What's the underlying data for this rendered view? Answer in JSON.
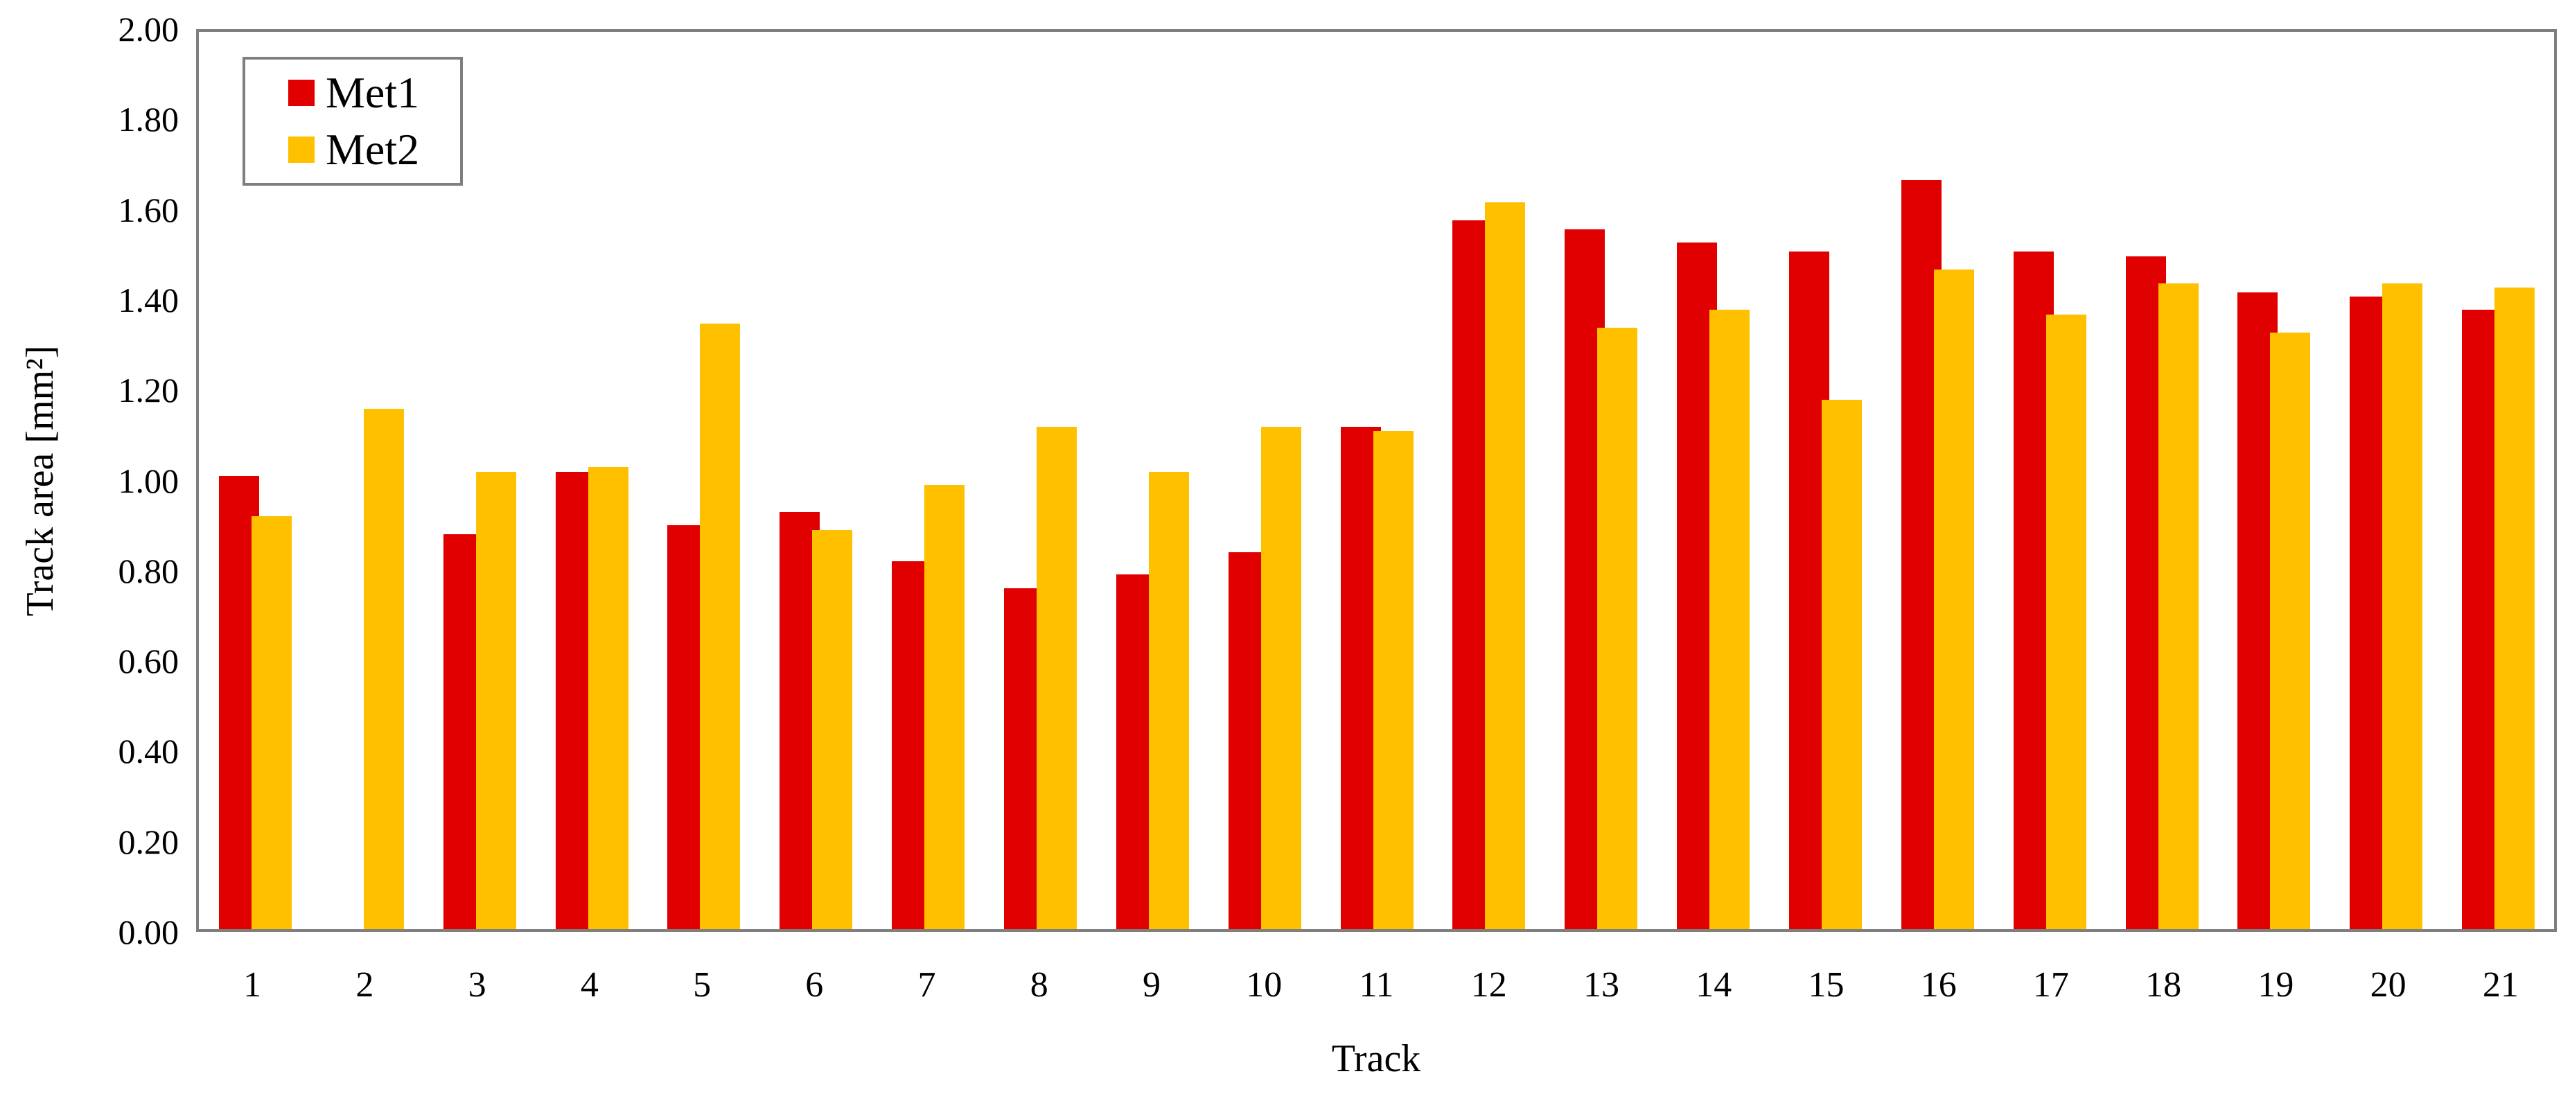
{
  "chart_data": {
    "type": "bar",
    "title": "",
    "categories": [
      "1",
      "2",
      "3",
      "4",
      "5",
      "6",
      "7",
      "8",
      "9",
      "10",
      "11",
      "12",
      "13",
      "14",
      "15",
      "16",
      "17",
      "18",
      "19",
      "20",
      "21"
    ],
    "series": [
      {
        "name": "Met1",
        "color": "#E00000",
        "values": [
          1.01,
          0.0,
          0.88,
          1.02,
          0.9,
          0.93,
          0.82,
          0.76,
          0.79,
          0.84,
          1.12,
          1.58,
          1.56,
          1.53,
          1.51,
          1.67,
          1.51,
          1.5,
          1.42,
          1.41,
          1.38
        ]
      },
      {
        "name": "Met2",
        "color": "#FFC000",
        "values": [
          0.92,
          1.16,
          1.02,
          1.03,
          1.35,
          0.89,
          0.99,
          1.12,
          1.02,
          1.12,
          1.11,
          1.62,
          1.34,
          1.38,
          1.18,
          1.47,
          1.37,
          1.44,
          1.33,
          1.44,
          1.43
        ]
      }
    ],
    "xlabel": "Track",
    "ylabel": "Track area [mm²]",
    "ylim": [
      0,
      2
    ],
    "ytick_step": 0.2,
    "ytick_labels": [
      "0.00",
      "0.20",
      "0.40",
      "0.60",
      "0.80",
      "1.00",
      "1.20",
      "1.40",
      "1.60",
      "1.80",
      "2.00"
    ],
    "grid": false,
    "legend_position": "top-left",
    "frame_color": "#7F7F7F",
    "background_color": "#FFFFFF"
  }
}
